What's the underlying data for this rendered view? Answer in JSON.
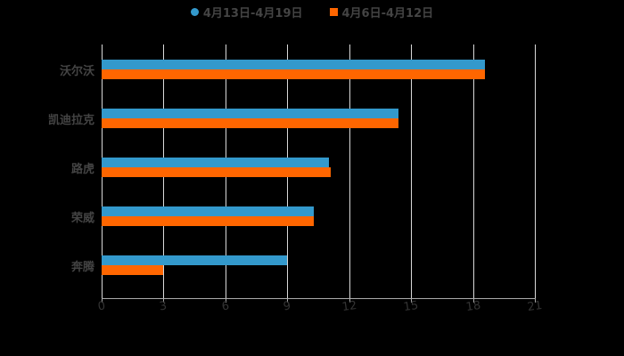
{
  "chart_data": {
    "type": "bar",
    "orientation": "horizontal",
    "title": "",
    "xlabel": "",
    "ylabel": "",
    "categories": [
      "沃尔沃",
      "凯迪拉克",
      "路虎",
      "荣威",
      "奔腾"
    ],
    "series": [
      {
        "name": "4月13日-4月19日",
        "color": "#3399cc",
        "values": [
          18.6,
          14.4,
          11.0,
          10.3,
          9.0
        ]
      },
      {
        "name": "4月6日-4月12日",
        "color": "#ff6600",
        "values": [
          18.6,
          14.4,
          11.1,
          10.3,
          3.0
        ]
      }
    ],
    "xlim": [
      0,
      21
    ],
    "xticks": [
      "0",
      "3",
      "6",
      "9",
      "12",
      "15",
      "18",
      "21"
    ],
    "grid": true,
    "legend_position": "top"
  },
  "legend": {
    "series1": "4月13日-4月19日",
    "series2": "4月6日-4月12日"
  }
}
